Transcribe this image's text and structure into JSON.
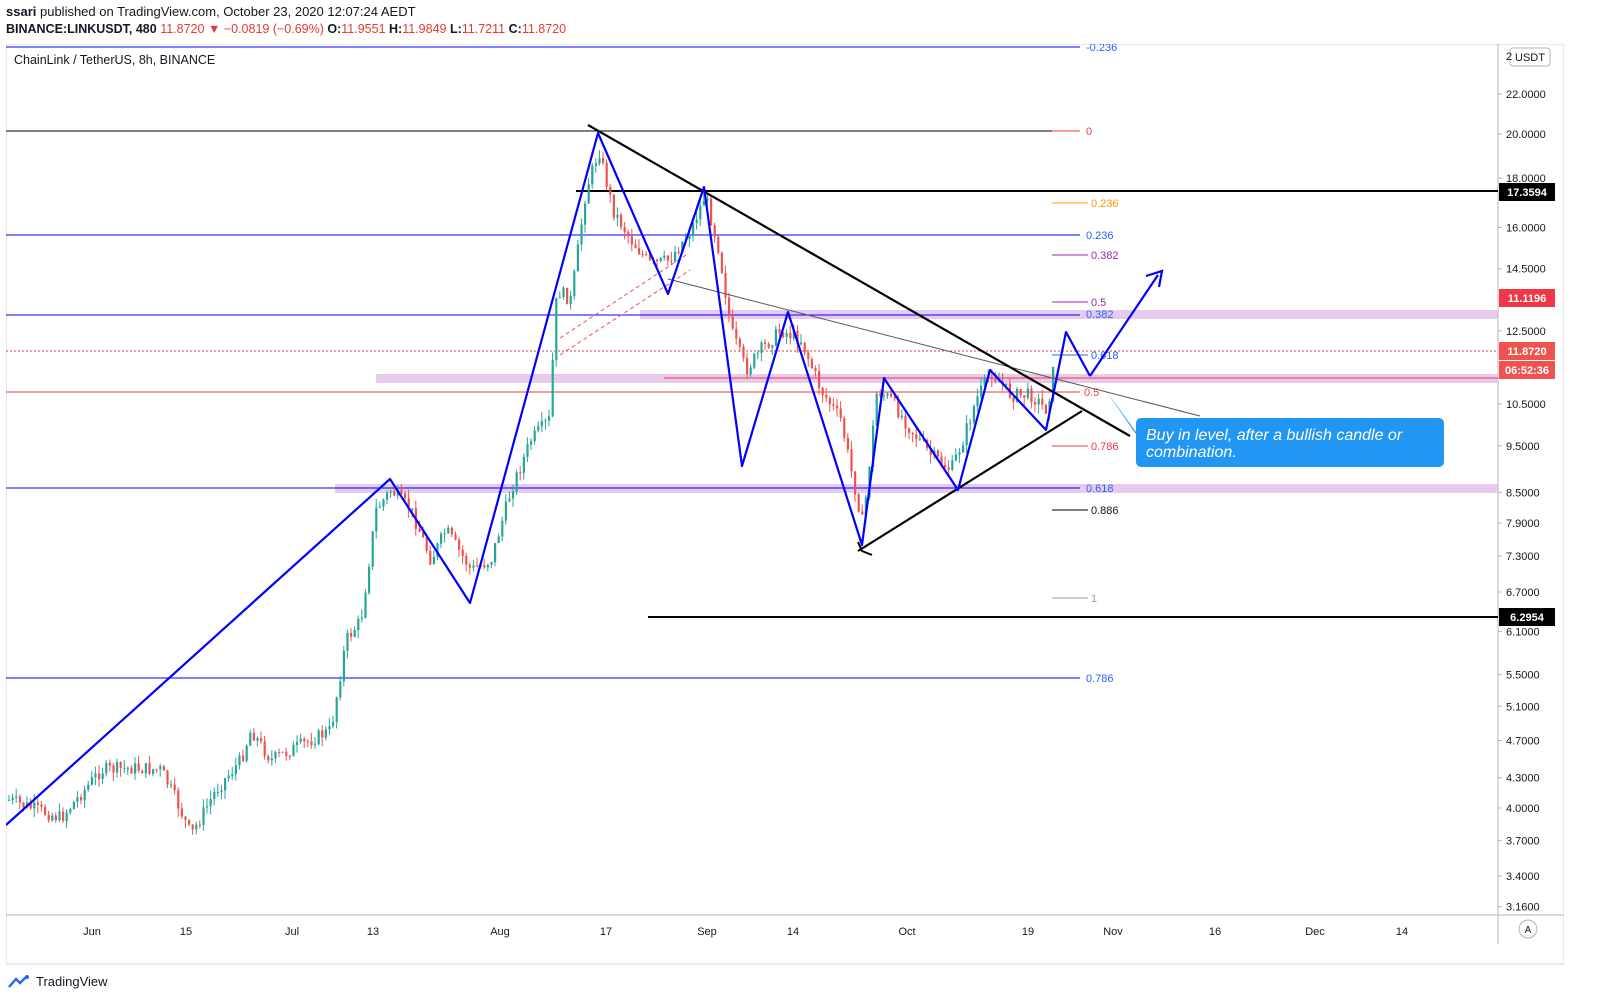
{
  "header": {
    "publisher_user": "ssari",
    "published_text": " published on TradingView.com, October 23, 2020 12:07:24 AEDT",
    "symbol": "BINANCE:LINKUSDT, 480",
    "last": "11.8720",
    "change": "−0.0819 (−0.69%)",
    "o_label": "O:",
    "o_value": "11.9551",
    "h_label": "H:",
    "h_value": "11.9849",
    "l_label": "L:",
    "l_value": "11.7211",
    "c_label": "C:",
    "c_value": "11.8720"
  },
  "footer": {
    "brand": "TradingView"
  },
  "chart_data": {
    "type": "candlestick",
    "title": "ChainLink / TetherUS, 8h, BINANCE",
    "currency_badge": "USDT",
    "y_scale": "log",
    "y_ticks": [
      "22.0000",
      "20.0000",
      "18.0000",
      "16.0000",
      "14.5000",
      "12.5000",
      "10.5000",
      "9.5000",
      "8.5000",
      "7.9000",
      "7.3000",
      "6.7000",
      "6.1000",
      "5.5000",
      "5.1000",
      "4.7000",
      "4.3000",
      "4.0000",
      "3.7000",
      "3.4000",
      "3.1600"
    ],
    "x_ticks": [
      "Jun",
      "15",
      "Jul",
      "13",
      "Aug",
      "17",
      "Sep",
      "14",
      "Oct",
      "19",
      "Nov",
      "16",
      "Dec",
      "14"
    ],
    "price_labels": [
      {
        "text": "17.3594",
        "value": 17.3594,
        "bg": "#000000"
      },
      {
        "text": "11.1196",
        "value": 11.1196,
        "bg": "#f23645"
      },
      {
        "text": "11.8720",
        "value": 11.872,
        "bg": "#ef5350"
      },
      {
        "text": "06:52:36",
        "value": 11.3,
        "bg": "#ef5350"
      },
      {
        "text": "6.2954",
        "value": 6.2954,
        "bg": "#000000"
      }
    ],
    "fib_labels": [
      {
        "text": "-0.236",
        "color": "#2962ff"
      },
      {
        "text": "0",
        "color": "#f23645"
      },
      {
        "text": "0.236",
        "color": "#ff9800"
      },
      {
        "text": "0.236",
        "color": "#2962ff"
      },
      {
        "text": "0.382",
        "color": "#9c27b0"
      },
      {
        "text": "0.5",
        "color": "#9c27b0"
      },
      {
        "text": "0.382",
        "color": "#2962ff"
      },
      {
        "text": "0.618",
        "color": "#2962ff"
      },
      {
        "text": "0.5",
        "color": "#f23645"
      },
      {
        "text": "0.786",
        "color": "#f23645"
      },
      {
        "text": "0.618",
        "color": "#2962ff"
      },
      {
        "text": "0.886",
        "color": "#131722"
      },
      {
        "text": "1",
        "color": "#9e9e9e"
      },
      {
        "text": "0.786",
        "color": "#2962ff"
      }
    ],
    "callout": "Buy in level, after a bullish candle or combination.",
    "scale_mode_button": "A",
    "colors": {
      "up": "#26a69a",
      "down": "#ef5350",
      "pattern": "#0000ff",
      "callout_bg": "#2196f3",
      "zone": "#e1bee7"
    }
  }
}
